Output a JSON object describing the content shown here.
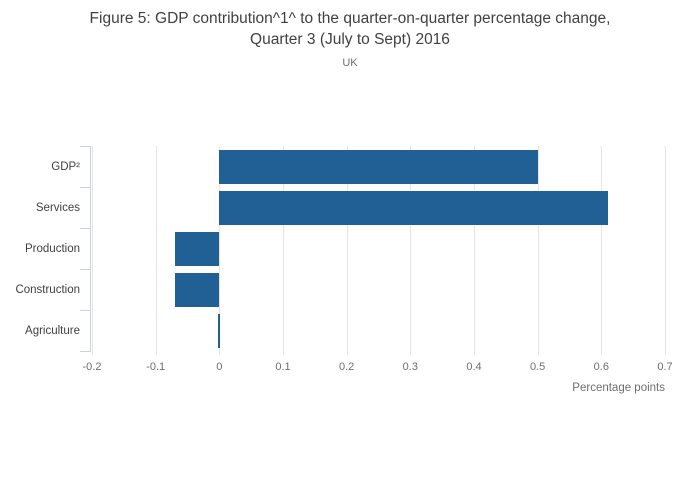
{
  "title": "Figure 5: GDP contribution^1^ to the quarter-on-quarter percentage change, Quarter 3 (July to Sept) 2016",
  "subtitle": "UK",
  "chart_data": {
    "type": "bar",
    "orientation": "horizontal",
    "title": "Figure 5: GDP contribution^1^ to the quarter-on-quarter percentage change, Quarter 3 (July to Sept) 2016",
    "subtitle": "UK",
    "categories": [
      "GDP²",
      "Services",
      "Production",
      "Construction",
      "Agriculture"
    ],
    "values": [
      0.5,
      0.61,
      -0.07,
      -0.07,
      0
    ],
    "xlabel": "Percentage points",
    "ylabel": "",
    "xlim": [
      -0.2,
      0.7
    ],
    "xticks": [
      -0.2,
      -0.1,
      0,
      0.1,
      0.2,
      0.3,
      0.4,
      0.5,
      0.6,
      0.7
    ],
    "grid": "vertical",
    "legend": "none"
  },
  "colors": {
    "bar": "#206095",
    "gridline": "#e4e4e4",
    "y_axis": "#c6d2e0",
    "title_text": "#414042",
    "muted_text": "#6d6e71"
  }
}
